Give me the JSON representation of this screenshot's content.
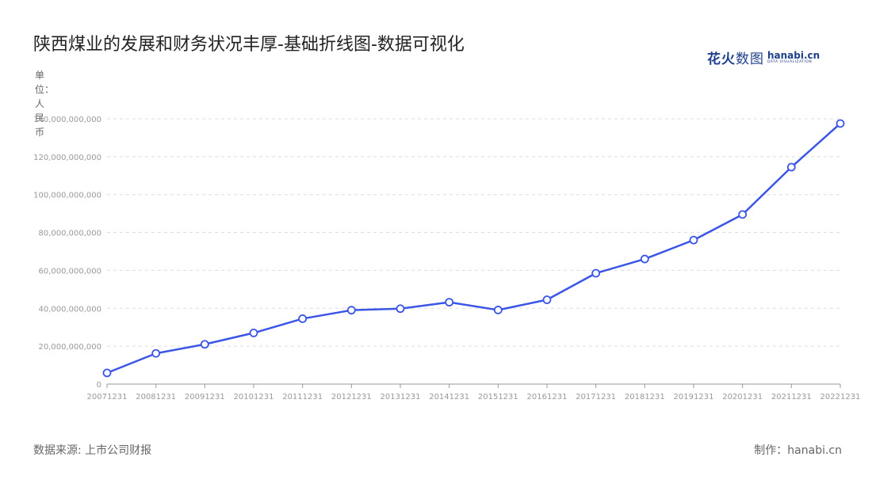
{
  "title": "陕西煤业的发展和财务状况丰厚-基础折线图-数据可视化",
  "logo": {
    "cn_bold": "花火",
    "cn_thin": "数图",
    "en": "hanabi.cn",
    "en_sub": "DATA VISUALIZATION"
  },
  "unit_label": "单位：人民币",
  "source": "数据来源: 上市公司财报",
  "credit": "制作：hanabi.cn",
  "colors": {
    "line": "#3b55e6",
    "grid": "#dddddd",
    "axis": "#999999",
    "point_fill": "#ffffff"
  },
  "chart_data": {
    "type": "line",
    "categories": [
      "20071231",
      "20081231",
      "20091231",
      "20101231",
      "20111231",
      "20121231",
      "20131231",
      "20141231",
      "20151231",
      "20161231",
      "20171231",
      "20181231",
      "20191231",
      "20201231",
      "20211231",
      "20221231"
    ],
    "series": [
      {
        "values": [
          5900000000,
          16200000000,
          21000000000,
          27000000000,
          34500000000,
          39000000000,
          39800000000,
          43200000000,
          39100000000,
          44500000000,
          58500000000,
          66000000000,
          76000000000,
          89500000000,
          114500000000,
          137500000000
        ]
      }
    ],
    "yticks": [
      "0",
      "20,000,000,000",
      "40,000,000,000",
      "60,000,000,000",
      "80,000,000,000",
      "100,000,000,000",
      "120,000,000,000",
      "140,000,000,000"
    ],
    "ylim": [
      0,
      140000000000
    ],
    "grid": true,
    "legend": "none"
  }
}
